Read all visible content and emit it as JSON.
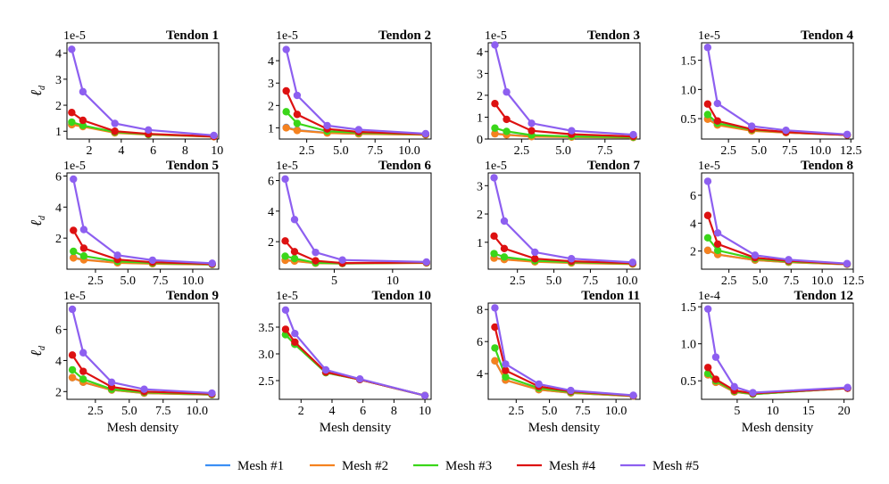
{
  "figure": {
    "xlabel": "Mesh density",
    "ylabel": "ℓ",
    "ylabel_sub": "d"
  },
  "legend": {
    "placement": "bottom-center",
    "entries": [
      {
        "name": "Mesh #1",
        "color": "#3b8ff5"
      },
      {
        "name": "Mesh #2",
        "color": "#f5821f"
      },
      {
        "name": "Mesh #3",
        "color": "#3ad619"
      },
      {
        "name": "Mesh #4",
        "color": "#dd1111"
      },
      {
        "name": "Mesh #5",
        "color": "#8d5ff0"
      }
    ]
  },
  "chart_data": [
    {
      "type": "line",
      "title": "Tendon 1",
      "scale_label": "1e-5",
      "xlim": [
        0.6,
        10.1
      ],
      "ylim": [
        0.7,
        4.4
      ],
      "xticks": [
        2,
        4,
        6,
        8,
        10
      ],
      "xtick_labels": [
        "2",
        "4",
        "6",
        "8",
        "10"
      ],
      "yticks": [
        1,
        2,
        3,
        4
      ],
      "ytick_labels": [
        "1",
        "2",
        "3",
        "4"
      ],
      "x": [
        0.9,
        1.6,
        3.6,
        5.7,
        9.8
      ],
      "series": [
        {
          "name": "Mesh #1",
          "values": [
            1.25,
            1.2,
            0.95,
            0.88,
            0.8
          ]
        },
        {
          "name": "Mesh #2",
          "values": [
            1.25,
            1.18,
            0.94,
            0.87,
            0.79
          ]
        },
        {
          "name": "Mesh #3",
          "values": [
            1.35,
            1.22,
            0.97,
            0.88,
            0.8
          ]
        },
        {
          "name": "Mesh #4",
          "values": [
            1.72,
            1.42,
            1.0,
            0.9,
            0.8
          ]
        },
        {
          "name": "Mesh #5",
          "values": [
            4.15,
            2.52,
            1.3,
            1.05,
            0.84
          ]
        }
      ]
    },
    {
      "type": "line",
      "title": "Tendon 2",
      "scale_label": "1e-5",
      "xlim": [
        0.5,
        11.6
      ],
      "ylim": [
        0.5,
        4.8
      ],
      "xticks": [
        2.5,
        5.0,
        7.5,
        10.0
      ],
      "xtick_labels": [
        "2.5",
        "5.0",
        "7.5",
        "10.0"
      ],
      "yticks": [
        1,
        2,
        3,
        4
      ],
      "ytick_labels": [
        "1",
        "2",
        "3",
        "4"
      ],
      "x": [
        1.0,
        1.8,
        4.0,
        6.3,
        11.2
      ],
      "series": [
        {
          "name": "Mesh #1",
          "values": [
            1.02,
            0.9,
            0.78,
            0.74,
            0.7
          ]
        },
        {
          "name": "Mesh #2",
          "values": [
            1.0,
            0.88,
            0.77,
            0.73,
            0.69
          ]
        },
        {
          "name": "Mesh #3",
          "values": [
            1.72,
            1.2,
            0.85,
            0.78,
            0.71
          ]
        },
        {
          "name": "Mesh #4",
          "values": [
            2.65,
            1.6,
            0.95,
            0.82,
            0.72
          ]
        },
        {
          "name": "Mesh #5",
          "values": [
            4.5,
            2.45,
            1.1,
            0.92,
            0.74
          ]
        }
      ]
    },
    {
      "type": "line",
      "title": "Tendon 3",
      "scale_label": "1e-5",
      "xlim": [
        0.5,
        9.6
      ],
      "ylim": [
        0,
        4.4
      ],
      "xticks": [
        2.5,
        5.0,
        7.5
      ],
      "xtick_labels": [
        "2.5",
        "5.0",
        "7.5"
      ],
      "yticks": [
        0,
        1,
        2,
        3,
        4
      ],
      "ytick_labels": [
        "0",
        "1",
        "2",
        "3",
        "4"
      ],
      "x": [
        0.9,
        1.6,
        3.1,
        5.5,
        9.2
      ],
      "series": [
        {
          "name": "Mesh #1",
          "values": [
            0.25,
            0.2,
            0.12,
            0.1,
            0.08
          ]
        },
        {
          "name": "Mesh #2",
          "values": [
            0.24,
            0.19,
            0.11,
            0.09,
            0.07
          ]
        },
        {
          "name": "Mesh #3",
          "values": [
            0.5,
            0.35,
            0.18,
            0.12,
            0.09
          ]
        },
        {
          "name": "Mesh #4",
          "values": [
            1.62,
            0.9,
            0.38,
            0.22,
            0.12
          ]
        },
        {
          "name": "Mesh #5",
          "values": [
            4.3,
            2.15,
            0.72,
            0.38,
            0.2
          ]
        }
      ]
    },
    {
      "type": "line",
      "title": "Tendon 4",
      "scale_label": "1e-5",
      "xlim": [
        0.3,
        12.7
      ],
      "ylim": [
        0.15,
        1.8
      ],
      "xticks": [
        2.5,
        5.0,
        7.5,
        10.0,
        12.5
      ],
      "xtick_labels": [
        "2.5",
        "5.0",
        "7.5",
        "10.0",
        "12.5"
      ],
      "yticks": [
        0.5,
        1.0,
        1.5
      ],
      "ytick_labels": [
        "0.5",
        "1.0",
        "1.5"
      ],
      "x": [
        0.8,
        1.6,
        4.4,
        7.2,
        12.2
      ],
      "series": [
        {
          "name": "Mesh #1",
          "values": [
            0.5,
            0.4,
            0.3,
            0.26,
            0.22
          ]
        },
        {
          "name": "Mesh #2",
          "values": [
            0.49,
            0.39,
            0.29,
            0.26,
            0.22
          ]
        },
        {
          "name": "Mesh #3",
          "values": [
            0.57,
            0.42,
            0.31,
            0.27,
            0.22
          ]
        },
        {
          "name": "Mesh #4",
          "values": [
            0.75,
            0.46,
            0.32,
            0.27,
            0.22
          ]
        },
        {
          "name": "Mesh #5",
          "values": [
            1.72,
            0.76,
            0.37,
            0.3,
            0.23
          ]
        }
      ]
    },
    {
      "type": "line",
      "title": "Tendon 5",
      "scale_label": "1e-5",
      "xlim": [
        0.3,
        12.0
      ],
      "ylim": [
        0,
        6.2
      ],
      "xticks": [
        2.5,
        5.0,
        7.5,
        10.0
      ],
      "xtick_labels": [
        "2.5",
        "5.0",
        "7.5",
        "10.0"
      ],
      "yticks": [
        2,
        4,
        6
      ],
      "ytick_labels": [
        "2",
        "4",
        "6"
      ],
      "x": [
        0.8,
        1.6,
        4.2,
        6.9,
        11.5
      ],
      "series": [
        {
          "name": "Mesh #1",
          "values": [
            0.75,
            0.62,
            0.42,
            0.36,
            0.3
          ]
        },
        {
          "name": "Mesh #2",
          "values": [
            0.72,
            0.6,
            0.41,
            0.35,
            0.3
          ]
        },
        {
          "name": "Mesh #3",
          "values": [
            1.15,
            0.85,
            0.5,
            0.4,
            0.32
          ]
        },
        {
          "name": "Mesh #4",
          "values": [
            2.5,
            1.35,
            0.62,
            0.45,
            0.34
          ]
        },
        {
          "name": "Mesh #5",
          "values": [
            5.8,
            2.55,
            0.9,
            0.58,
            0.38
          ]
        }
      ]
    },
    {
      "type": "line",
      "title": "Tendon 6",
      "scale_label": "1e-5",
      "xlim": [
        0.3,
        13.3
      ],
      "ylim": [
        0.2,
        6.5
      ],
      "xticks": [
        5,
        10
      ],
      "xtick_labels": [
        "5",
        "10"
      ],
      "yticks": [
        2,
        4,
        6
      ],
      "ytick_labels": [
        "2",
        "4",
        "6"
      ],
      "x": [
        0.8,
        1.6,
        3.4,
        5.7,
        12.9
      ],
      "series": [
        {
          "name": "Mesh #1",
          "values": [
            0.8,
            0.75,
            0.6,
            0.58,
            0.62
          ]
        },
        {
          "name": "Mesh #2",
          "values": [
            0.78,
            0.73,
            0.59,
            0.57,
            0.61
          ]
        },
        {
          "name": "Mesh #3",
          "values": [
            1.05,
            0.9,
            0.62,
            0.58,
            0.63
          ]
        },
        {
          "name": "Mesh #4",
          "values": [
            2.05,
            1.35,
            0.75,
            0.6,
            0.64
          ]
        },
        {
          "name": "Mesh #5",
          "values": [
            6.1,
            3.45,
            1.3,
            0.8,
            0.67
          ]
        }
      ]
    },
    {
      "type": "line",
      "title": "Tendon 7",
      "scale_label": "1e-5",
      "xlim": [
        0.5,
        10.9
      ],
      "ylim": [
        0.05,
        3.45
      ],
      "xticks": [
        2.5,
        5.0,
        7.5,
        10.0
      ],
      "xtick_labels": [
        "2.5",
        "5.0",
        "7.5",
        "10.0"
      ],
      "yticks": [
        1,
        2,
        3
      ],
      "ytick_labels": [
        "1",
        "2",
        "3"
      ],
      "x": [
        0.9,
        1.6,
        3.7,
        6.2,
        10.4
      ],
      "series": [
        {
          "name": "Mesh #1",
          "values": [
            0.45,
            0.4,
            0.32,
            0.28,
            0.24
          ]
        },
        {
          "name": "Mesh #2",
          "values": [
            0.44,
            0.39,
            0.31,
            0.27,
            0.23
          ]
        },
        {
          "name": "Mesh #3",
          "values": [
            0.6,
            0.48,
            0.35,
            0.3,
            0.25
          ]
        },
        {
          "name": "Mesh #4",
          "values": [
            1.22,
            0.78,
            0.42,
            0.33,
            0.26
          ]
        },
        {
          "name": "Mesh #5",
          "values": [
            3.28,
            1.75,
            0.65,
            0.42,
            0.29
          ]
        }
      ]
    },
    {
      "type": "line",
      "title": "Tendon 8",
      "scale_label": "1e-5",
      "xlim": [
        0.3,
        12.5
      ],
      "ylim": [
        0.7,
        7.6
      ],
      "xticks": [
        2.5,
        5.0,
        7.5,
        10.0,
        12.5
      ],
      "xtick_labels": [
        "2.5",
        "5.0",
        "7.5",
        "10.0",
        "12.5"
      ],
      "yticks": [
        2,
        4,
        6
      ],
      "ytick_labels": [
        "2",
        "4",
        "6"
      ],
      "x": [
        0.8,
        1.6,
        4.6,
        7.3,
        12.0
      ],
      "series": [
        {
          "name": "Mesh #1",
          "values": [
            2.05,
            1.75,
            1.35,
            1.2,
            1.05
          ]
        },
        {
          "name": "Mesh #2",
          "values": [
            2.05,
            1.75,
            1.35,
            1.2,
            1.05
          ]
        },
        {
          "name": "Mesh #3",
          "values": [
            2.95,
            2.05,
            1.45,
            1.25,
            1.07
          ]
        },
        {
          "name": "Mesh #4",
          "values": [
            4.55,
            2.5,
            1.52,
            1.3,
            1.08
          ]
        },
        {
          "name": "Mesh #5",
          "values": [
            7.0,
            3.3,
            1.7,
            1.38,
            1.1
          ]
        }
      ]
    },
    {
      "type": "line",
      "title": "Tendon 9",
      "scale_label": "1e-5",
      "xlim": [
        0.4,
        11.6
      ],
      "ylim": [
        1.5,
        7.7
      ],
      "xticks": [
        2.5,
        5.0,
        7.5,
        10.0
      ],
      "xtick_labels": [
        "2.5",
        "5.0",
        "7.5",
        "10.0"
      ],
      "yticks": [
        2,
        4,
        6
      ],
      "ytick_labels": [
        "2",
        "4",
        "6"
      ],
      "x": [
        0.8,
        1.6,
        3.7,
        6.1,
        11.1
      ],
      "series": [
        {
          "name": "Mesh #1",
          "values": [
            2.9,
            2.6,
            2.1,
            1.9,
            1.8
          ]
        },
        {
          "name": "Mesh #2",
          "values": [
            2.9,
            2.6,
            2.1,
            1.9,
            1.8
          ]
        },
        {
          "name": "Mesh #3",
          "values": [
            3.4,
            2.8,
            2.15,
            1.95,
            1.82
          ]
        },
        {
          "name": "Mesh #4",
          "values": [
            4.35,
            3.3,
            2.3,
            2.0,
            1.85
          ]
        },
        {
          "name": "Mesh #5",
          "values": [
            7.3,
            4.5,
            2.6,
            2.15,
            1.9
          ]
        }
      ]
    },
    {
      "type": "line",
      "title": "Tendon 10",
      "scale_label": "1e-5",
      "xlim": [
        0.6,
        10.4
      ],
      "ylim": [
        2.15,
        3.95
      ],
      "xticks": [
        2,
        4,
        6,
        8,
        10
      ],
      "xtick_labels": [
        "2",
        "4",
        "6",
        "8",
        "10"
      ],
      "yticks": [
        2.5,
        3.0,
        3.5
      ],
      "ytick_labels": [
        "2.5",
        "3.0",
        "3.5"
      ],
      "x": [
        1.0,
        1.6,
        3.6,
        5.8,
        10.0
      ],
      "series": [
        {
          "name": "Mesh #1",
          "values": [
            3.36,
            3.18,
            2.65,
            2.52,
            2.22
          ]
        },
        {
          "name": "Mesh #2",
          "values": [
            3.36,
            3.18,
            2.65,
            2.52,
            2.22
          ]
        },
        {
          "name": "Mesh #3",
          "values": [
            3.36,
            3.18,
            2.65,
            2.52,
            2.22
          ]
        },
        {
          "name": "Mesh #4",
          "values": [
            3.46,
            3.22,
            2.66,
            2.52,
            2.22
          ]
        },
        {
          "name": "Mesh #5",
          "values": [
            3.82,
            3.38,
            2.7,
            2.53,
            2.22
          ]
        }
      ]
    },
    {
      "type": "line",
      "title": "Tendon 11",
      "scale_label": "",
      "xlim": [
        0.4,
        11.8
      ],
      "ylim": [
        2.4,
        8.4
      ],
      "xticks": [
        2.5,
        5.0,
        7.5,
        10.0
      ],
      "xtick_labels": [
        "2.5",
        "5.0",
        "7.5",
        "10.0"
      ],
      "yticks": [
        4,
        6,
        8
      ],
      "ytick_labels": [
        "4",
        "6",
        "8"
      ],
      "x": [
        0.9,
        1.7,
        4.2,
        6.6,
        11.3
      ],
      "series": [
        {
          "name": "Mesh #1",
          "values": [
            4.8,
            3.6,
            3.0,
            2.8,
            2.6
          ]
        },
        {
          "name": "Mesh #2",
          "values": [
            4.8,
            3.6,
            3.0,
            2.8,
            2.6
          ]
        },
        {
          "name": "Mesh #3",
          "values": [
            5.6,
            3.8,
            3.1,
            2.85,
            2.62
          ]
        },
        {
          "name": "Mesh #4",
          "values": [
            6.9,
            4.2,
            3.2,
            2.9,
            2.63
          ]
        },
        {
          "name": "Mesh #5",
          "values": [
            8.1,
            4.6,
            3.35,
            2.95,
            2.65
          ]
        }
      ]
    },
    {
      "type": "line",
      "title": "Tendon 12",
      "scale_label": "1e-4",
      "xlim": [
        0,
        21.3
      ],
      "ylim": [
        0.25,
        1.55
      ],
      "xticks": [
        5,
        10,
        15,
        20
      ],
      "xtick_labels": [
        "5",
        "10",
        "15",
        "20"
      ],
      "yticks": [
        0.5,
        1.0,
        1.5
      ],
      "ytick_labels": [
        "0.5",
        "1.0",
        "1.5"
      ],
      "x": [
        0.9,
        2.0,
        4.6,
        7.2,
        20.5
      ],
      "series": [
        {
          "name": "Mesh #1",
          "values": [
            0.58,
            0.48,
            0.35,
            0.32,
            0.4
          ]
        },
        {
          "name": "Mesh #2",
          "values": [
            0.58,
            0.48,
            0.35,
            0.32,
            0.4
          ]
        },
        {
          "name": "Mesh #3",
          "values": [
            0.6,
            0.5,
            0.36,
            0.32,
            0.4
          ]
        },
        {
          "name": "Mesh #4",
          "values": [
            0.68,
            0.52,
            0.37,
            0.33,
            0.4
          ]
        },
        {
          "name": "Mesh #5",
          "values": [
            1.47,
            0.82,
            0.42,
            0.34,
            0.41
          ]
        }
      ]
    }
  ]
}
